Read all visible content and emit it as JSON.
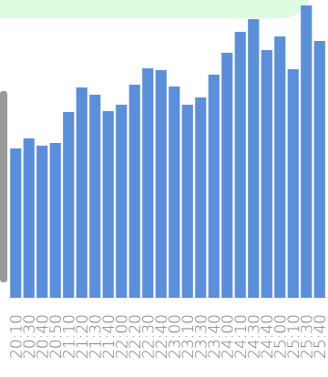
{
  "chart_data": {
    "type": "bar",
    "categories": [
      "20:10",
      "20:30",
      "20:40",
      "20:50",
      "21:10",
      "21:20",
      "21:30",
      "21:40",
      "22:00",
      "22:20",
      "22:30",
      "22:40",
      "23:00",
      "23:10",
      "23:30",
      "23:40",
      "24:00",
      "24:10",
      "24:30",
      "24:40",
      "25:00",
      "25:10",
      "25:30",
      "25:40"
    ],
    "values": [
      164,
      175,
      167,
      170,
      204,
      231,
      223,
      205,
      212,
      234,
      252,
      250,
      232,
      212,
      220,
      245,
      269,
      292,
      306,
      272,
      287,
      251,
      321,
      282
    ],
    "color": "#5b8fd9",
    "ylim": [
      0,
      327
    ]
  }
}
